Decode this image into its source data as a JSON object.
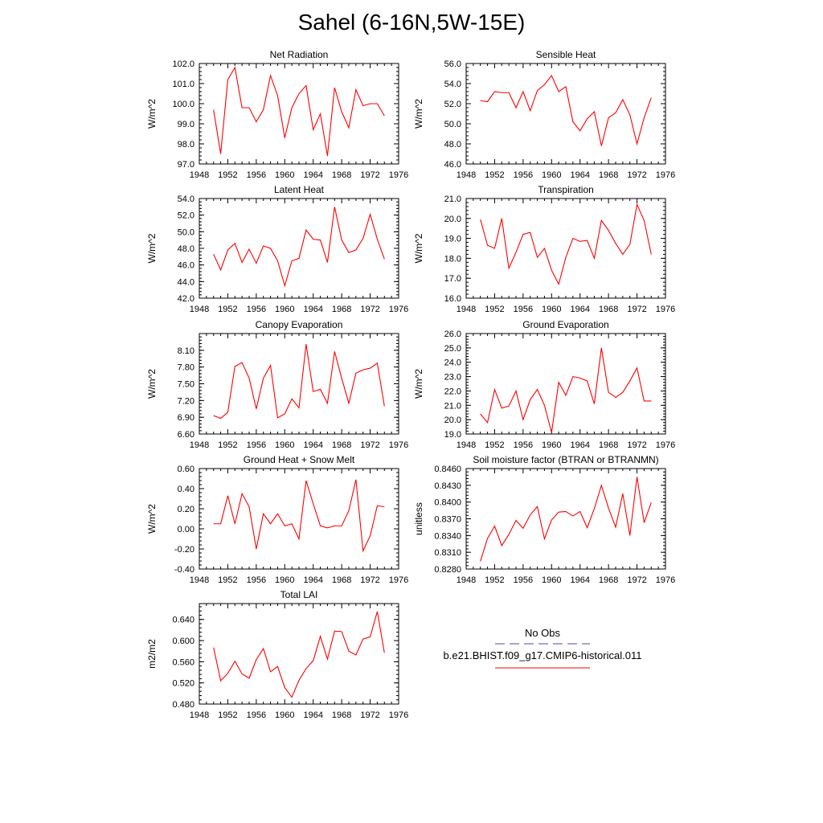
{
  "page": {
    "title": "Sahel (6-16N,5W-15E)"
  },
  "legend": {
    "entries": [
      {
        "label": "No Obs",
        "color": "#4a4aa8",
        "style": "dashed"
      },
      {
        "label": "b.e21.BHIST.f09_g17.CMIP6-historical.011",
        "color": "#ff0000",
        "style": "solid"
      }
    ]
  },
  "colors": {
    "series": "#ff0000",
    "axis": "#000000"
  },
  "chart_data": [
    {
      "type": "line",
      "title": "Net Radiation",
      "ylabel": "W/m^2",
      "xlim": [
        1948,
        1976
      ],
      "ylim": [
        97.0,
        102.0
      ],
      "xticks": [
        1948,
        1952,
        1956,
        1960,
        1964,
        1968,
        1972,
        1976
      ],
      "yticks": [
        "97.0",
        "98.0",
        "99.0",
        "100.0",
        "101.0",
        "102.0"
      ],
      "x": [
        1950,
        1951,
        1952,
        1953,
        1954,
        1955,
        1956,
        1957,
        1958,
        1959,
        1960,
        1961,
        1962,
        1963,
        1964,
        1965,
        1966,
        1967,
        1968,
        1969,
        1970,
        1971,
        1972,
        1973,
        1974
      ],
      "series": [
        {
          "values": [
            99.7,
            97.5,
            101.2,
            101.8,
            99.8,
            99.8,
            99.1,
            99.7,
            101.4,
            100.4,
            98.3,
            99.8,
            100.5,
            100.9,
            98.7,
            99.5,
            97.4,
            100.8,
            99.6,
            98.8,
            100.7,
            99.9,
            100.0,
            100.0,
            99.4
          ]
        }
      ]
    },
    {
      "type": "line",
      "title": "Sensible Heat",
      "ylabel": "W/m^2",
      "xlim": [
        1948,
        1976
      ],
      "ylim": [
        46.0,
        56.0
      ],
      "xticks": [
        1948,
        1952,
        1956,
        1960,
        1964,
        1968,
        1972,
        1976
      ],
      "yticks": [
        "46.0",
        "48.0",
        "50.0",
        "52.0",
        "54.0",
        "56.0"
      ],
      "x": [
        1950,
        1951,
        1952,
        1953,
        1954,
        1955,
        1956,
        1957,
        1958,
        1959,
        1960,
        1961,
        1962,
        1963,
        1964,
        1965,
        1966,
        1967,
        1968,
        1969,
        1970,
        1971,
        1972,
        1973,
        1974
      ],
      "series": [
        {
          "values": [
            52.3,
            52.2,
            53.2,
            53.1,
            53.1,
            51.6,
            53.2,
            51.3,
            53.3,
            53.9,
            54.8,
            53.2,
            53.7,
            50.2,
            49.3,
            50.5,
            51.2,
            47.8,
            50.6,
            51.1,
            52.4,
            50.9,
            48.0,
            50.6,
            52.6
          ]
        }
      ]
    },
    {
      "type": "line",
      "title": "Latent Heat",
      "ylabel": "W/m^2",
      "xlim": [
        1948,
        1976
      ],
      "ylim": [
        42.0,
        54.0
      ],
      "xticks": [
        1948,
        1952,
        1956,
        1960,
        1964,
        1968,
        1972,
        1976
      ],
      "yticks": [
        "42.0",
        "44.0",
        "46.0",
        "48.0",
        "50.0",
        "52.0",
        "54.0"
      ],
      "x": [
        1950,
        1951,
        1952,
        1953,
        1954,
        1955,
        1956,
        1957,
        1958,
        1959,
        1960,
        1961,
        1962,
        1963,
        1964,
        1965,
        1966,
        1967,
        1968,
        1969,
        1970,
        1971,
        1972,
        1973,
        1974
      ],
      "series": [
        {
          "values": [
            47.3,
            45.4,
            47.8,
            48.6,
            46.3,
            47.9,
            46.2,
            48.3,
            48.0,
            46.5,
            43.5,
            46.5,
            46.8,
            50.2,
            49.1,
            49.0,
            46.3,
            53.0,
            49.0,
            47.5,
            47.8,
            49.2,
            52.1,
            49.1,
            46.7
          ]
        }
      ]
    },
    {
      "type": "line",
      "title": "Transpiration",
      "ylabel": "W/m^2",
      "xlim": [
        1948,
        1976
      ],
      "ylim": [
        16.0,
        21.0
      ],
      "xticks": [
        1948,
        1952,
        1956,
        1960,
        1964,
        1968,
        1972,
        1976
      ],
      "yticks": [
        "16.0",
        "17.0",
        "18.0",
        "19.0",
        "20.0",
        "21.0"
      ],
      "x": [
        1950,
        1951,
        1952,
        1953,
        1954,
        1955,
        1956,
        1957,
        1958,
        1959,
        1960,
        1961,
        1962,
        1963,
        1964,
        1965,
        1966,
        1967,
        1968,
        1969,
        1970,
        1971,
        1972,
        1973,
        1974
      ],
      "series": [
        {
          "values": [
            19.95,
            18.65,
            18.5,
            20.0,
            17.5,
            18.3,
            19.2,
            19.3,
            18.05,
            18.5,
            17.4,
            16.7,
            18.05,
            19.0,
            18.85,
            18.9,
            18.0,
            19.9,
            19.4,
            18.75,
            18.2,
            18.7,
            20.7,
            19.9,
            18.2
          ]
        }
      ]
    },
    {
      "type": "line",
      "title": "Canopy Evaporation",
      "ylabel": "W/m^2",
      "xlim": [
        1948,
        1976
      ],
      "ylim": [
        6.6,
        8.4
      ],
      "xticks": [
        1948,
        1952,
        1956,
        1960,
        1964,
        1968,
        1972,
        1976
      ],
      "yticks": [
        "6.60",
        "6.90",
        "7.20",
        "7.50",
        "7.80",
        "8.10"
      ],
      "x": [
        1950,
        1951,
        1952,
        1953,
        1954,
        1955,
        1956,
        1957,
        1958,
        1959,
        1960,
        1961,
        1962,
        1963,
        1964,
        1965,
        1966,
        1967,
        1968,
        1969,
        1970,
        1971,
        1972,
        1973,
        1974
      ],
      "series": [
        {
          "values": [
            6.93,
            6.88,
            6.99,
            7.81,
            7.88,
            7.6,
            7.05,
            7.6,
            7.83,
            6.89,
            6.96,
            7.23,
            7.07,
            8.21,
            7.36,
            7.4,
            7.15,
            8.08,
            7.6,
            7.15,
            7.69,
            7.75,
            7.78,
            7.87,
            7.1
          ]
        }
      ]
    },
    {
      "type": "line",
      "title": "Ground Evaporation",
      "ylabel": "W/m^2",
      "xlim": [
        1948,
        1976
      ],
      "ylim": [
        19.0,
        26.0
      ],
      "xticks": [
        1948,
        1952,
        1956,
        1960,
        1964,
        1968,
        1972,
        1976
      ],
      "yticks": [
        "19.0",
        "20.0",
        "21.0",
        "22.0",
        "23.0",
        "24.0",
        "25.0",
        "26.0"
      ],
      "x": [
        1950,
        1951,
        1952,
        1953,
        1954,
        1955,
        1956,
        1957,
        1958,
        1959,
        1960,
        1961,
        1962,
        1963,
        1964,
        1965,
        1966,
        1967,
        1968,
        1969,
        1970,
        1971,
        1972,
        1973,
        1974
      ],
      "series": [
        {
          "values": [
            20.4,
            19.8,
            22.1,
            20.8,
            20.95,
            22.0,
            20.0,
            21.4,
            22.1,
            21.0,
            19.1,
            22.6,
            21.7,
            23.0,
            22.9,
            22.7,
            21.1,
            25.0,
            21.9,
            21.55,
            21.9,
            22.7,
            23.6,
            21.3,
            21.3
          ]
        }
      ]
    },
    {
      "type": "line",
      "title": "Ground Heat + Snow Melt",
      "ylabel": "W/m^2",
      "xlim": [
        1948,
        1976
      ],
      "ylim": [
        -0.4,
        0.6
      ],
      "xticks": [
        1948,
        1952,
        1956,
        1960,
        1964,
        1968,
        1972,
        1976
      ],
      "yticks": [
        "-0.40",
        "-0.20",
        "0.00",
        "0.20",
        "0.40",
        "0.60"
      ],
      "x": [
        1950,
        1951,
        1952,
        1953,
        1954,
        1955,
        1956,
        1957,
        1958,
        1959,
        1960,
        1961,
        1962,
        1963,
        1964,
        1965,
        1966,
        1967,
        1968,
        1969,
        1970,
        1971,
        1972,
        1973,
        1974
      ],
      "series": [
        {
          "values": [
            0.05,
            0.05,
            0.33,
            0.05,
            0.35,
            0.22,
            -0.2,
            0.15,
            0.05,
            0.15,
            0.03,
            0.05,
            -0.1,
            0.48,
            0.25,
            0.03,
            0.01,
            0.03,
            0.03,
            0.18,
            0.49,
            -0.22,
            -0.07,
            0.23,
            0.22
          ]
        }
      ]
    },
    {
      "type": "line",
      "title": "Soil moisture factor (BTRAN or BTRANMN)",
      "ylabel": "unitless",
      "xlim": [
        1948,
        1976
      ],
      "ylim": [
        0.828,
        0.846
      ],
      "xticks": [
        1948,
        1952,
        1956,
        1960,
        1964,
        1968,
        1972,
        1976
      ],
      "yticks": [
        "0.8280",
        "0.8310",
        "0.8340",
        "0.8370",
        "0.8400",
        "0.8430",
        "0.8460"
      ],
      "x": [
        1950,
        1951,
        1952,
        1953,
        1954,
        1955,
        1956,
        1957,
        1958,
        1959,
        1960,
        1961,
        1962,
        1963,
        1964,
        1965,
        1966,
        1967,
        1968,
        1969,
        1970,
        1971,
        1972,
        1973,
        1974
      ],
      "series": [
        {
          "values": [
            0.8294,
            0.8335,
            0.8357,
            0.8322,
            0.8342,
            0.8367,
            0.8353,
            0.8377,
            0.8392,
            0.8334,
            0.8368,
            0.8382,
            0.8383,
            0.8375,
            0.8383,
            0.8354,
            0.8388,
            0.843,
            0.8389,
            0.8355,
            0.8415,
            0.834,
            0.8445,
            0.8363,
            0.8399
          ]
        }
      ]
    },
    {
      "type": "line",
      "title": "Total LAI",
      "ylabel": "m2/m2",
      "xlim": [
        1948,
        1976
      ],
      "ylim": [
        0.48,
        0.67
      ],
      "xticks": [
        1948,
        1952,
        1956,
        1960,
        1964,
        1968,
        1972,
        1976
      ],
      "yticks": [
        "0.480",
        "0.520",
        "0.560",
        "0.600",
        "0.640"
      ],
      "x": [
        1950,
        1951,
        1952,
        1953,
        1954,
        1955,
        1956,
        1957,
        1958,
        1959,
        1960,
        1961,
        1962,
        1963,
        1964,
        1965,
        1966,
        1967,
        1968,
        1969,
        1970,
        1971,
        1972,
        1973,
        1974
      ],
      "series": [
        {
          "values": [
            0.587,
            0.524,
            0.538,
            0.561,
            0.537,
            0.529,
            0.564,
            0.585,
            0.541,
            0.551,
            0.511,
            0.493,
            0.525,
            0.547,
            0.562,
            0.608,
            0.565,
            0.618,
            0.617,
            0.58,
            0.573,
            0.603,
            0.607,
            0.655,
            0.577
          ]
        }
      ]
    }
  ]
}
